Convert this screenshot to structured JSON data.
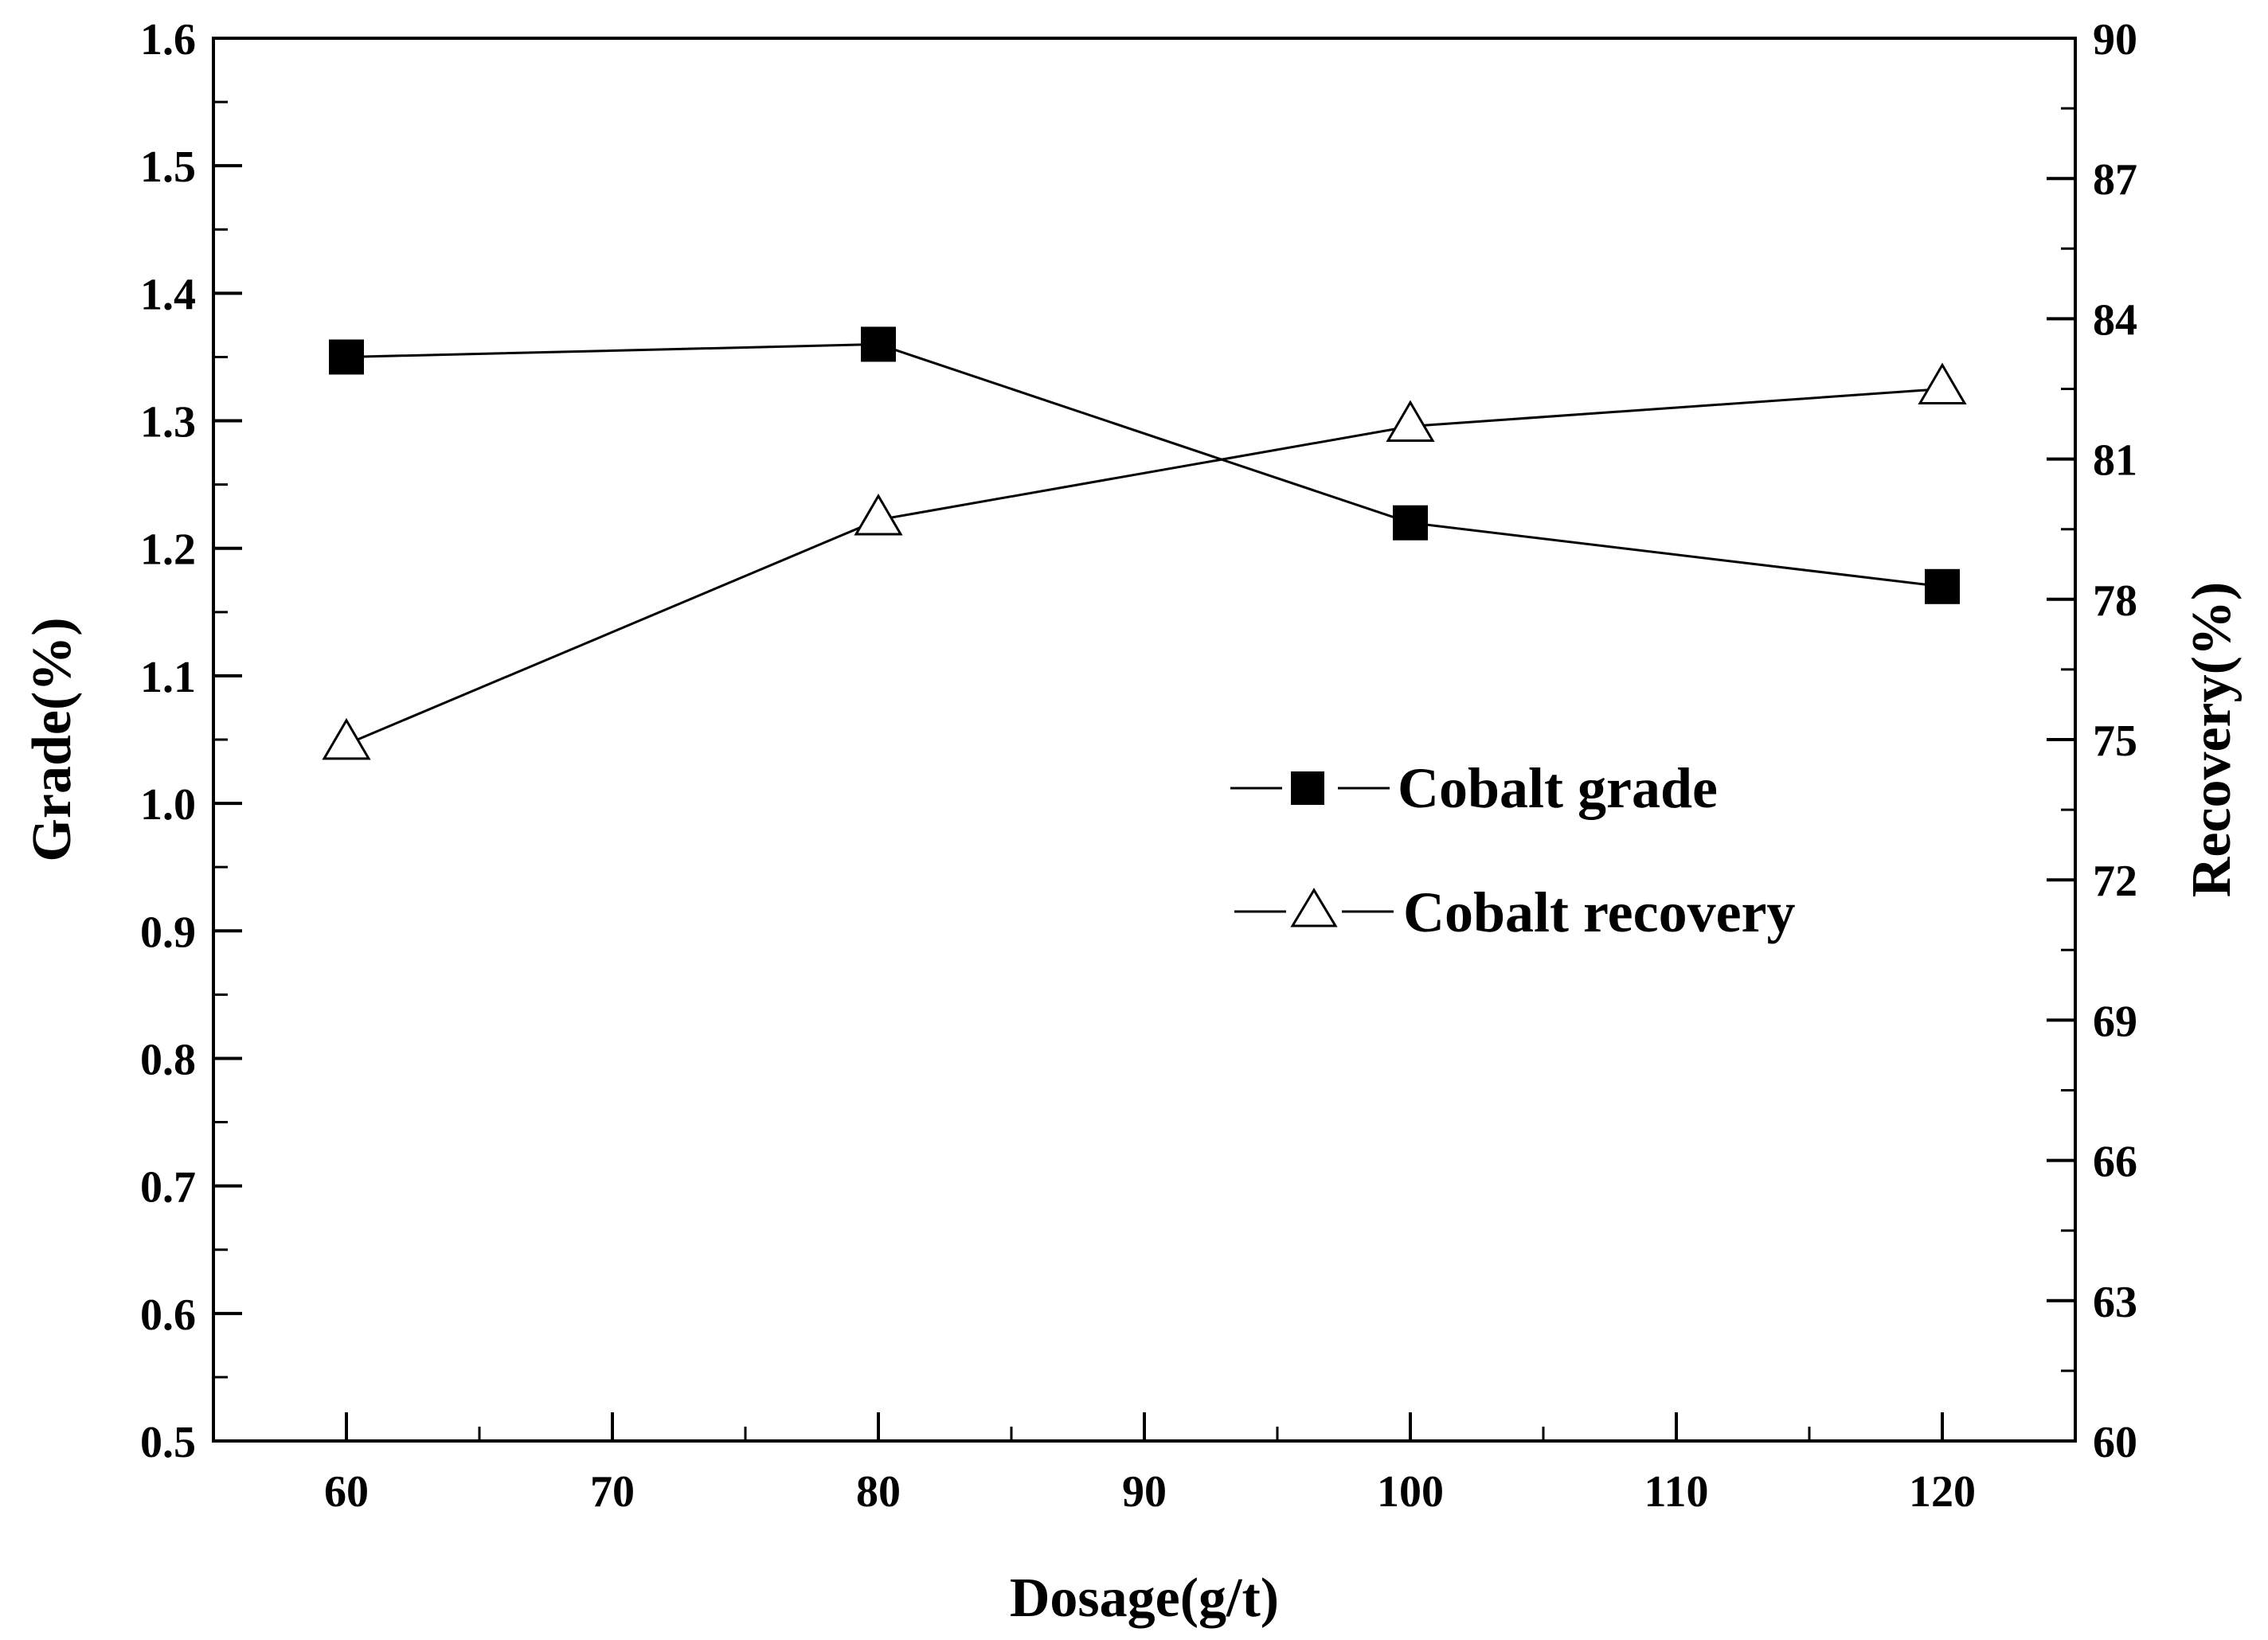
{
  "chart_data": {
    "type": "line",
    "title": "",
    "xlabel": "Dosage(g/t)",
    "ylabel": "Grade(%)",
    "y2label": "Recovery(%)",
    "xlim": [
      55,
      125
    ],
    "ylim": [
      0.5,
      1.6
    ],
    "y2lim": [
      60,
      90
    ],
    "x_ticks": [
      "60",
      "70",
      "80",
      "90",
      "100",
      "110",
      "120"
    ],
    "y_ticks": [
      "0.5",
      "0.6",
      "0.7",
      "0.8",
      "0.9",
      "1.0",
      "1.1",
      "1.2",
      "1.3",
      "1.4",
      "1.5",
      "1.6"
    ],
    "y2_ticks": [
      "60",
      "63",
      "66",
      "69",
      "72",
      "75",
      "78",
      "81",
      "84",
      "87",
      "90"
    ],
    "grid": false,
    "legend_position": "middle-right",
    "x": [
      60,
      80,
      100,
      120
    ],
    "series": [
      {
        "name": "Cobalt grade",
        "axis": "left",
        "marker": "filled-square",
        "values": [
          1.35,
          1.36,
          1.22,
          1.17
        ]
      },
      {
        "name": "Cobalt recovery",
        "axis": "right",
        "marker": "open-triangle",
        "values": [
          74.9,
          79.7,
          81.7,
          82.5
        ]
      }
    ]
  }
}
